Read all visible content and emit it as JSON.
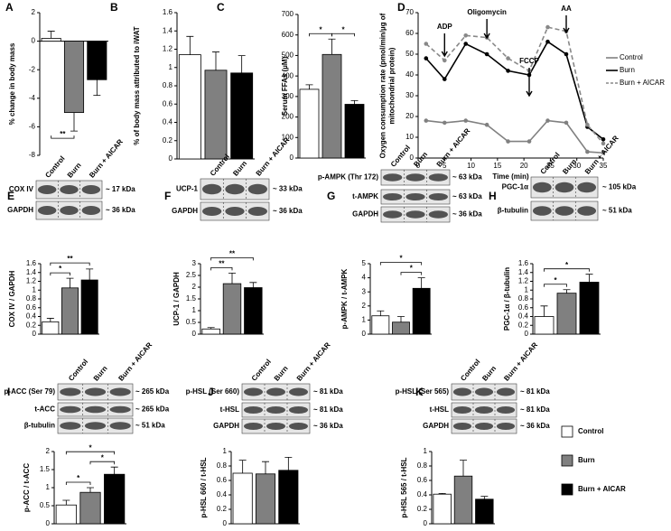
{
  "chart_data": [
    {
      "type": "bar",
      "panel": "A",
      "ylabel": "% change in body mass",
      "categories": [
        null,
        null,
        null
      ],
      "values": [
        0.2,
        -5,
        -2.7
      ],
      "errors": [
        0.5,
        1.3,
        1.1
      ],
      "colors": [
        "#ffffff",
        "#808080",
        "#000000"
      ],
      "ylim": [
        -8,
        2
      ],
      "yticks": [
        -8,
        -6,
        -4,
        -2,
        0,
        2
      ],
      "annotations": [
        {
          "text": "**",
          "between": [
            0,
            1
          ]
        }
      ]
    },
    {
      "type": "bar",
      "panel": "B",
      "ylabel": "% of body mass attributed to iWAT",
      "categories": [
        null,
        null,
        null
      ],
      "values": [
        1.14,
        0.97,
        0.94
      ],
      "errors": [
        0.2,
        0.2,
        0.19
      ],
      "colors": [
        "#ffffff",
        "#808080",
        "#000000"
      ],
      "ylim": [
        0,
        1.6
      ],
      "yticks": [
        0,
        0.2,
        0.4,
        0.6,
        0.8,
        1,
        1.2,
        1.4,
        1.6
      ],
      "annotations": []
    },
    {
      "type": "bar",
      "panel": "C",
      "ylabel": "Serum FFAs (µM)",
      "categories": [
        null,
        null,
        null
      ],
      "values": [
        335,
        505,
        262
      ],
      "errors": [
        22,
        75,
        18
      ],
      "colors": [
        "#ffffff",
        "#808080",
        "#000000"
      ],
      "ylim": [
        0,
        700
      ],
      "yticks": [
        0,
        100,
        200,
        300,
        400,
        500,
        600,
        700
      ],
      "annotations": [
        {
          "text": "*",
          "between": [
            0,
            1
          ]
        },
        {
          "text": "*",
          "between": [
            1,
            2
          ]
        }
      ]
    },
    {
      "type": "line",
      "panel": "D",
      "ylabel": "Oxygen consumption rate (pmol/min/µg of mitochondrial protein)",
      "xlabel": "Time (min)",
      "x": [
        1.5,
        5,
        9,
        13,
        17,
        21,
        24.5,
        28,
        32,
        35
      ],
      "series": [
        {
          "name": "Control",
          "color": "#808080",
          "dash": false,
          "values": [
            18,
            17,
            18,
            16,
            8,
            8,
            18,
            17,
            3,
            2.5
          ]
        },
        {
          "name": "Burn",
          "color": "#000000",
          "dash": false,
          "values": [
            48,
            38,
            55,
            50,
            42,
            40,
            56,
            50,
            15,
            9
          ]
        },
        {
          "name": "Burn + AICAR",
          "color": "#888888",
          "dash": true,
          "values": [
            55,
            47,
            59,
            58,
            48,
            42,
            63,
            61,
            16,
            7
          ]
        }
      ],
      "xlim": [
        0,
        35
      ],
      "xticks": [
        0,
        5,
        10,
        15,
        20,
        25,
        30,
        35
      ],
      "ylim": [
        0,
        70
      ],
      "yticks": [
        0,
        10,
        20,
        30,
        40,
        50,
        60,
        70
      ],
      "legend": "right",
      "annotations": [
        {
          "text": "ADP",
          "x": 5
        },
        {
          "text": "Oligomycin",
          "x": 13
        },
        {
          "text": "FCCP",
          "x": 21
        },
        {
          "text": "AA",
          "x": 28
        }
      ]
    },
    {
      "type": "bar",
      "panel": "E",
      "ylabel": "COX IV / GAPDH",
      "blot": {
        "lanes": [
          "Control",
          "Burn",
          "Burn + AICAR"
        ],
        "rows": [
          {
            "label": "COX IV",
            "size": "~ 17 kDa"
          },
          {
            "label": "GAPDH",
            "size": "~ 36 kDa"
          }
        ]
      },
      "categories": [
        null,
        null,
        null
      ],
      "values": [
        0.28,
        1.05,
        1.23
      ],
      "errors": [
        0.08,
        0.22,
        0.25
      ],
      "colors": [
        "#ffffff",
        "#808080",
        "#000000"
      ],
      "ylim": [
        0,
        1.6
      ],
      "yticks": [
        0,
        0.2,
        0.4,
        0.6,
        0.8,
        1,
        1.2,
        1.4,
        1.6
      ],
      "annotations": [
        {
          "text": "*",
          "between": [
            0,
            1
          ]
        },
        {
          "text": "**",
          "between": [
            0,
            2
          ]
        }
      ]
    },
    {
      "type": "bar",
      "panel": "F",
      "ylabel": "UCP-1 / GAPDH",
      "blot": {
        "lanes": [
          "Control",
          "Burn",
          "Burn + AICAR"
        ],
        "rows": [
          {
            "label": "UCP-1",
            "size": "~ 33 kDa"
          },
          {
            "label": "GAPDH",
            "size": "~ 36 kDa"
          }
        ]
      },
      "categories": [
        null,
        null,
        null
      ],
      "values": [
        0.22,
        2.15,
        1.98
      ],
      "errors": [
        0.06,
        0.45,
        0.22
      ],
      "colors": [
        "#ffffff",
        "#808080",
        "#000000"
      ],
      "ylim": [
        0,
        3
      ],
      "yticks": [
        0,
        0.5,
        1,
        1.5,
        2,
        2.5,
        3
      ],
      "annotations": [
        {
          "text": "**",
          "between": [
            0,
            1
          ]
        },
        {
          "text": "**",
          "between": [
            0,
            2
          ]
        }
      ]
    },
    {
      "type": "bar",
      "panel": "G",
      "ylabel": "p-AMPK / t-AMPK",
      "blot": {
        "lanes": [
          "Control",
          "Burn",
          "Burn + AICAR"
        ],
        "rows": [
          {
            "label": "p-AMPK (Thr 172)",
            "size": "~ 63 kDa"
          },
          {
            "label": "t-AMPK",
            "size": "~ 63 kDa"
          },
          {
            "label": "GAPDH",
            "size": "~ 36 kDa"
          }
        ]
      },
      "categories": [
        null,
        null,
        null
      ],
      "values": [
        1.3,
        0.85,
        3.25
      ],
      "errors": [
        0.35,
        0.4,
        0.75
      ],
      "colors": [
        "#ffffff",
        "#808080",
        "#000000"
      ],
      "ylim": [
        0,
        5
      ],
      "yticks": [
        0,
        1,
        2,
        3,
        4,
        5
      ],
      "annotations": [
        {
          "text": "*",
          "between": [
            1,
            2
          ]
        },
        {
          "text": "*",
          "between": [
            0,
            2
          ]
        }
      ]
    },
    {
      "type": "bar",
      "panel": "H",
      "ylabel": "PGC-1α / β-tubulin",
      "blot": {
        "lanes": [
          "Control",
          "Burn",
          "Burn + AICAR"
        ],
        "rows": [
          {
            "label": "PGC-1α",
            "size": "~ 105 kDa"
          },
          {
            "label": "β-tubulin",
            "size": "~ 51 kDa"
          }
        ]
      },
      "categories": [
        null,
        null,
        null
      ],
      "values": [
        0.4,
        0.93,
        1.18
      ],
      "errors": [
        0.24,
        0.08,
        0.18
      ],
      "colors": [
        "#ffffff",
        "#808080",
        "#000000"
      ],
      "ylim": [
        0,
        1.6
      ],
      "yticks": [
        0,
        0.2,
        0.4,
        0.6,
        0.8,
        1,
        1.2,
        1.4,
        1.6
      ],
      "annotations": [
        {
          "text": "*",
          "between": [
            0,
            1
          ]
        },
        {
          "text": "*",
          "between": [
            0,
            2
          ]
        }
      ]
    },
    {
      "type": "bar",
      "panel": "I",
      "ylabel": "p-ACC / t-ACC",
      "blot": {
        "lanes": [
          "Control",
          "Burn",
          "Burn + AICAR"
        ],
        "rows": [
          {
            "label": "p-ACC (Ser 79)",
            "size": "~ 265 kDa"
          },
          {
            "label": "t-ACC",
            "size": "~ 265 kDa"
          },
          {
            "label": "β-tubulin",
            "size": "~ 51 kDa"
          }
        ]
      },
      "categories": [
        null,
        null,
        null
      ],
      "values": [
        0.52,
        0.87,
        1.37
      ],
      "errors": [
        0.13,
        0.13,
        0.2
      ],
      "colors": [
        "#ffffff",
        "#808080",
        "#000000"
      ],
      "ylim": [
        0,
        2
      ],
      "yticks": [
        0,
        0.5,
        1,
        1.5,
        2
      ],
      "annotations": [
        {
          "text": "*",
          "between": [
            0,
            1
          ]
        },
        {
          "text": "*",
          "between": [
            1,
            2
          ]
        },
        {
          "text": "*",
          "between": [
            0,
            2
          ]
        }
      ]
    },
    {
      "type": "bar",
      "panel": "J",
      "ylabel": "p-HSL 660 / t-HSL",
      "blot": {
        "lanes": [
          "Control",
          "Burn",
          "Burn + AICAR"
        ],
        "rows": [
          {
            "label": "p-HSL (Ser 660)",
            "size": "~ 81 kDa"
          },
          {
            "label": "t-HSL",
            "size": "~ 81 kDa"
          },
          {
            "label": "GAPDH",
            "size": "~ 36 kDa"
          }
        ]
      },
      "categories": [
        null,
        null,
        null
      ],
      "values": [
        0.7,
        0.69,
        0.74
      ],
      "errors": [
        0.18,
        0.17,
        0.18
      ],
      "colors": [
        "#ffffff",
        "#808080",
        "#000000"
      ],
      "ylim": [
        0,
        1
      ],
      "yticks": [
        0,
        0.2,
        0.4,
        0.6,
        0.8,
        1
      ],
      "annotations": []
    },
    {
      "type": "bar",
      "panel": "K",
      "ylabel": "p-HSL 565 / t-HSL",
      "blot": {
        "lanes": [
          "Control",
          "Burn",
          "Burn + AICAR"
        ],
        "rows": [
          {
            "label": "p-HSL (Ser 565)",
            "size": "~ 81 kDa"
          },
          {
            "label": "t-HSL",
            "size": "~ 81 kDa"
          },
          {
            "label": "GAPDH",
            "size": "~ 36 kDa"
          }
        ]
      },
      "categories": [
        null,
        null,
        null
      ],
      "values": [
        0.41,
        0.66,
        0.34
      ],
      "errors": [
        0.01,
        0.22,
        0.04
      ],
      "colors": [
        "#ffffff",
        "#808080",
        "#000000"
      ],
      "ylim": [
        0,
        1
      ],
      "yticks": [
        0,
        0.2,
        0.4,
        0.6,
        0.8,
        1
      ],
      "annotations": []
    }
  ],
  "legend": [
    {
      "name": "Control",
      "color": "#ffffff"
    },
    {
      "name": "Burn",
      "color": "#808080"
    },
    {
      "name": "Burn + AICAR",
      "color": "#000000"
    }
  ]
}
